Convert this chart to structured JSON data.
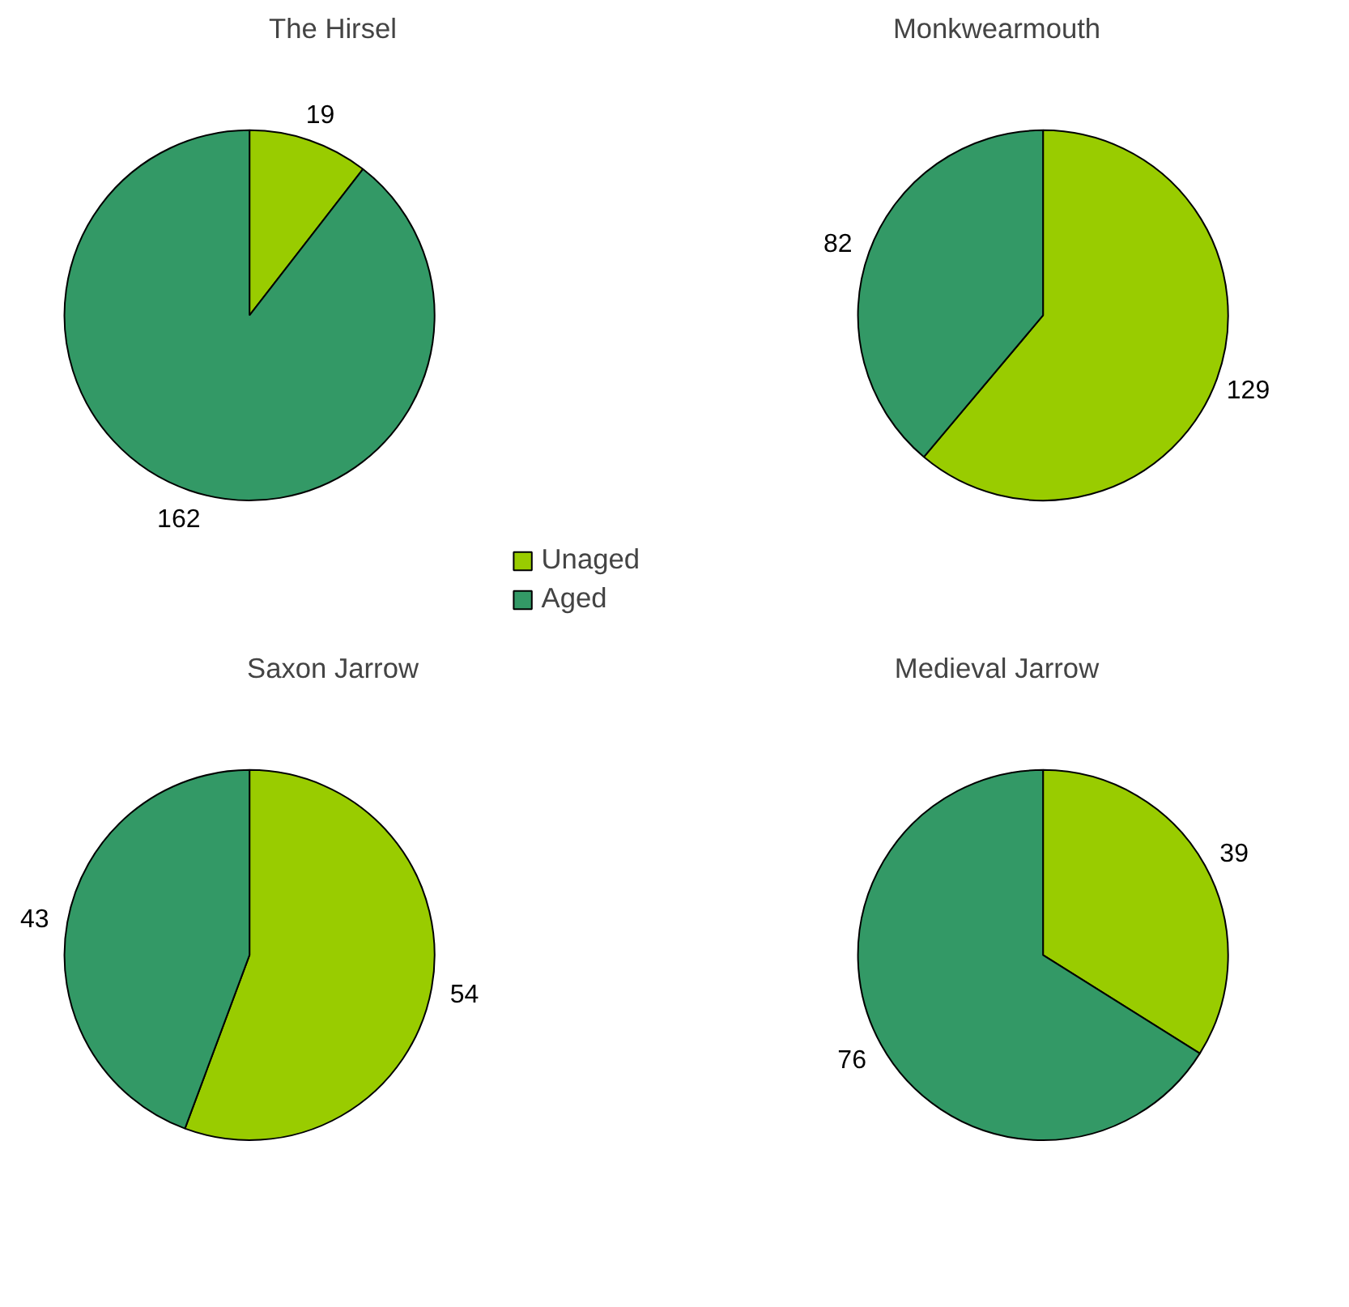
{
  "chart_data": [
    {
      "type": "pie",
      "title": "The Hirsel",
      "categories": [
        "Unaged",
        "Aged"
      ],
      "values": [
        19,
        162
      ],
      "colors": [
        "#99cc00",
        "#339966"
      ],
      "data_labels": true,
      "legend": "bottom right"
    },
    {
      "type": "pie",
      "title": "Monkwearmouth",
      "values": [
        129,
        82
      ],
      "colors": [
        "#99cc00",
        "#339966"
      ],
      "data_labels": true
    },
    {
      "type": "pie",
      "title": "Saxon Jarrow",
      "values": [
        54,
        43
      ],
      "colors": [
        "#99cc00",
        "#339966"
      ],
      "data_labels": true
    },
    {
      "type": "pie",
      "title": "Medieval Jarrow",
      "values": [
        39,
        76
      ],
      "colors": [
        "#99cc00",
        "#339966"
      ],
      "data_labels": true
    }
  ]
}
